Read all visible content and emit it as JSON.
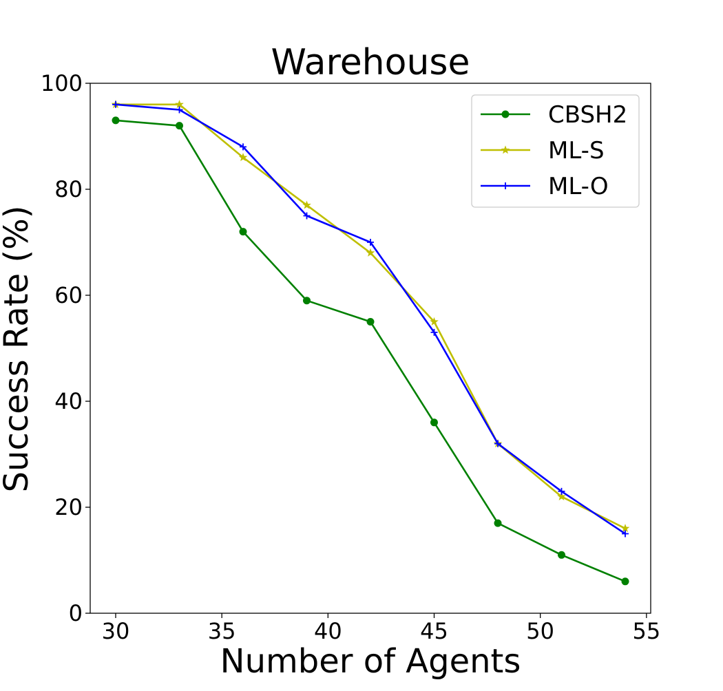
{
  "chart_data": {
    "type": "line",
    "title": "Warehouse",
    "xlabel": "Number of Agents",
    "ylabel": "Success Rate (%)",
    "xlim": [
      28.8,
      55.2
    ],
    "ylim": [
      0,
      100
    ],
    "xticks": [
      30,
      35,
      40,
      45,
      50,
      55
    ],
    "yticks": [
      0,
      20,
      40,
      60,
      80,
      100
    ],
    "grid": false,
    "legend_position": "top-right",
    "x": [
      30,
      33,
      36,
      39,
      42,
      45,
      48,
      51,
      54
    ],
    "series": [
      {
        "name": "CBSH2",
        "color": "#008000",
        "marker": "circle",
        "values": [
          93,
          92,
          72,
          59,
          55,
          36,
          17,
          11,
          6
        ]
      },
      {
        "name": "ML-S",
        "color": "#bfbf00",
        "marker": "star",
        "values": [
          96,
          96,
          86,
          77,
          68,
          55,
          32,
          22,
          16
        ]
      },
      {
        "name": "ML-O",
        "color": "#0000ff",
        "marker": "plus",
        "values": [
          96,
          95,
          88,
          75,
          70,
          53,
          32,
          23,
          15
        ]
      }
    ]
  }
}
